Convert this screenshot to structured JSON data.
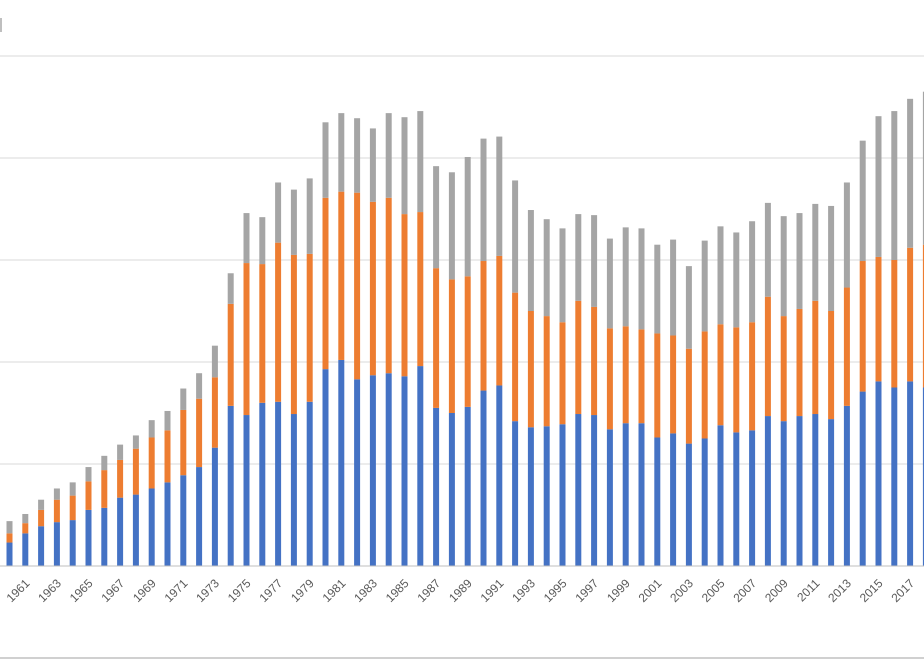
{
  "chart_data": {
    "type": "bar",
    "stacked": true,
    "title": "",
    "xlabel": "",
    "ylabel": "",
    "grid": true,
    "legend": "none",
    "ylim": [
      0,
      5
    ],
    "colors": [
      "#4472c4",
      "#ed7d31",
      "#a5a5a5"
    ],
    "categories": [
      "1960",
      "1961",
      "1962",
      "1963",
      "1964",
      "1965",
      "1966",
      "1967",
      "1968",
      "1969",
      "1970",
      "1971",
      "1972",
      "1973",
      "1974",
      "1975",
      "1976",
      "1977",
      "1978",
      "1979",
      "1980",
      "1981",
      "1982",
      "1983",
      "1984",
      "1985",
      "1986",
      "1987",
      "1988",
      "1989",
      "1990",
      "1991",
      "1992",
      "1993",
      "1994",
      "1995",
      "1996",
      "1997",
      "1998",
      "1999",
      "2000",
      "2001",
      "2002",
      "2003",
      "2004",
      "2005",
      "2006",
      "2007",
      "2008",
      "2009",
      "2010",
      "2011",
      "2012",
      "2013",
      "2014",
      "2015",
      "2016",
      "2017",
      "2018"
    ],
    "x_tick_labels": [
      "1961",
      "1963",
      "1965",
      "1967",
      "1969",
      "1971",
      "1973",
      "1975",
      "1977",
      "1979",
      "1981",
      "1983",
      "1985",
      "1987",
      "1989",
      "1991",
      "1993",
      "1995",
      "1997",
      "1999",
      "2001",
      "2003",
      "2005",
      "2007",
      "2009",
      "2011",
      "2013",
      "2015",
      "2017"
    ],
    "series": [
      {
        "values": [
          0.23,
          0.32,
          0.39,
          0.43,
          0.45,
          0.55,
          0.57,
          0.67,
          0.7,
          0.76,
          0.82,
          0.89,
          0.97,
          1.16,
          1.57,
          1.48,
          1.6,
          1.61,
          1.49,
          1.61,
          1.93,
          2.02,
          1.83,
          1.87,
          1.89,
          1.86,
          1.96,
          1.55,
          1.5,
          1.56,
          1.72,
          1.77,
          1.42,
          1.36,
          1.37,
          1.39,
          1.49,
          1.48,
          1.34,
          1.4,
          1.4,
          1.26,
          1.3,
          1.2,
          1.25,
          1.38,
          1.31,
          1.33,
          1.47,
          1.42,
          1.47,
          1.49,
          1.44,
          1.57,
          1.71,
          1.81,
          1.75,
          1.81,
          1.75
        ]
      },
      {
        "values": [
          0.09,
          0.1,
          0.16,
          0.22,
          0.24,
          0.28,
          0.37,
          0.37,
          0.45,
          0.5,
          0.51,
          0.64,
          0.67,
          0.69,
          1.0,
          1.49,
          1.36,
          1.56,
          1.56,
          1.45,
          1.68,
          1.65,
          1.83,
          1.7,
          1.72,
          1.59,
          1.51,
          1.37,
          1.31,
          1.28,
          1.27,
          1.27,
          1.26,
          1.14,
          1.08,
          1.0,
          1.11,
          1.06,
          0.99,
          0.95,
          0.92,
          1.02,
          0.96,
          0.93,
          1.05,
          0.99,
          1.03,
          1.06,
          1.17,
          1.03,
          1.05,
          1.11,
          1.06,
          1.16,
          1.28,
          1.22,
          1.25,
          1.31,
          1.4
        ]
      },
      {
        "values": [
          0.12,
          0.09,
          0.1,
          0.11,
          0.13,
          0.14,
          0.14,
          0.15,
          0.13,
          0.17,
          0.19,
          0.21,
          0.25,
          0.31,
          0.3,
          0.49,
          0.46,
          0.59,
          0.64,
          0.74,
          0.74,
          0.77,
          0.73,
          0.72,
          0.83,
          0.95,
          0.99,
          1.0,
          1.05,
          1.17,
          1.2,
          1.17,
          1.1,
          0.99,
          0.95,
          0.92,
          0.85,
          0.9,
          0.88,
          0.97,
          0.99,
          0.87,
          0.94,
          0.81,
          0.89,
          0.96,
          0.93,
          0.99,
          0.92,
          0.98,
          0.94,
          0.95,
          1.03,
          1.03,
          1.18,
          1.38,
          1.46,
          1.46,
          1.5
        ]
      }
    ]
  }
}
